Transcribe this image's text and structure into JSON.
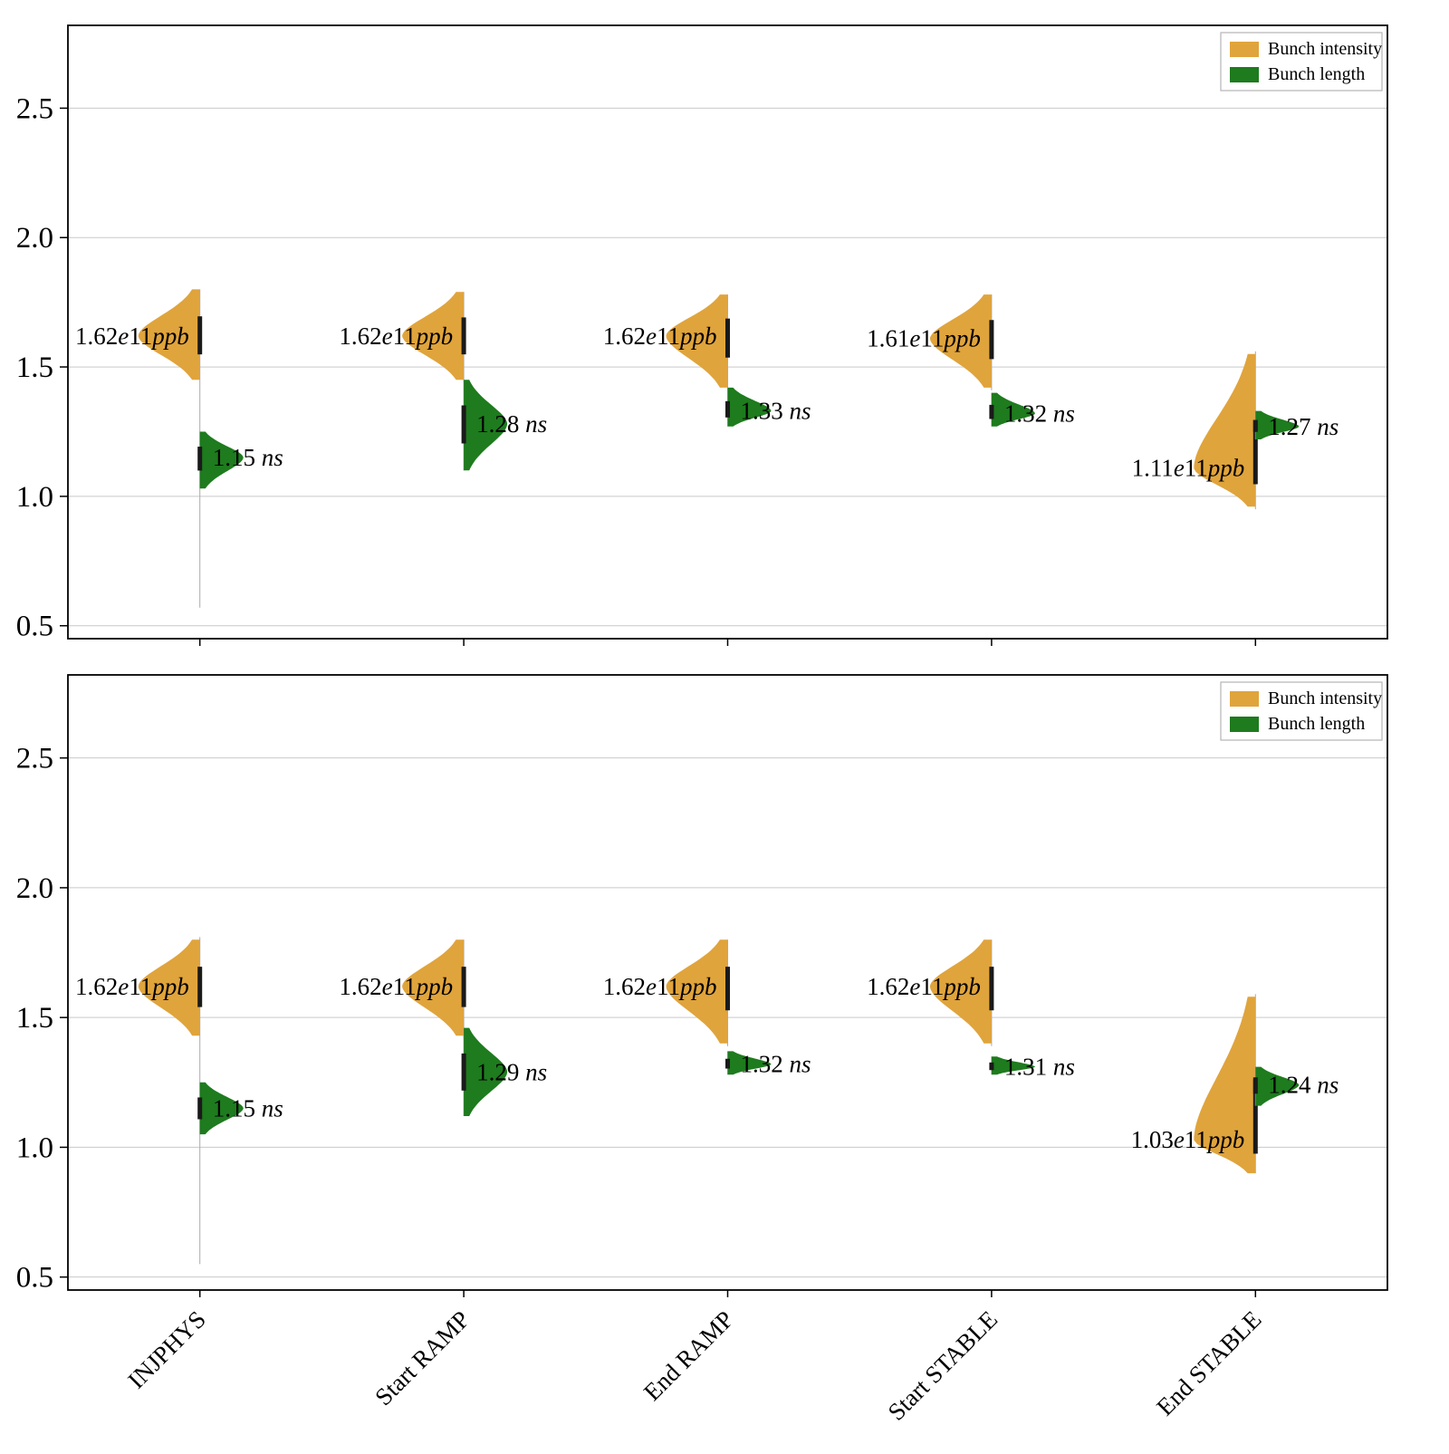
{
  "figure": {
    "background": "#ffffff",
    "border_color": "#000000",
    "grid_color": "#c9c9c9"
  },
  "colors": {
    "intensity": "#E0A43C",
    "length": "#1E7B1E",
    "bar": "#1a1a1a",
    "stem": "#aaaaaa"
  },
  "legend": {
    "items": [
      {
        "label": "Bunch intensity",
        "color": "#E0A43C"
      },
      {
        "label": "Bunch length",
        "color": "#1E7B1E"
      }
    ]
  },
  "y_axis": {
    "ticks": [
      "0.5",
      "1.0",
      "1.5",
      "2.0",
      "2.5"
    ],
    "min": 0.45,
    "max": 2.82
  },
  "categories": [
    "INJPHYS",
    "Start RAMP",
    "End RAMP",
    "Start STABLE",
    "End STABLE"
  ],
  "chart_data": [
    {
      "type": "violin",
      "panel": "top",
      "ylim": [
        0.45,
        2.82
      ],
      "categories": [
        "INJPHYS",
        "Start RAMP",
        "End RAMP",
        "Start STABLE",
        "End STABLE"
      ],
      "series": [
        {
          "name": "Bunch intensity",
          "unit": "e11 ppb",
          "side": "left",
          "color": "#E0A43C",
          "points": [
            {
              "mode": 1.62,
              "range": [
                1.45,
                1.8
              ],
              "stem": [
                0.57,
                1.8
              ],
              "label": "1.62e11ppb"
            },
            {
              "mode": 1.62,
              "range": [
                1.45,
                1.79
              ],
              "stem": [
                1.44,
                1.79
              ],
              "label": "1.62e11ppb"
            },
            {
              "mode": 1.62,
              "range": [
                1.42,
                1.78
              ],
              "stem": [
                1.41,
                1.78
              ],
              "label": "1.62e11ppb"
            },
            {
              "mode": 1.61,
              "range": [
                1.42,
                1.78
              ],
              "stem": [
                1.41,
                1.78
              ],
              "label": "1.61e11ppb"
            },
            {
              "mode": 1.11,
              "range": [
                0.96,
                1.55
              ],
              "stem": [
                0.95,
                1.56
              ],
              "label": "1.11e11ppb"
            }
          ]
        },
        {
          "name": "Bunch length",
          "unit": "ns",
          "side": "right",
          "color": "#1E7B1E",
          "points": [
            {
              "mode": 1.15,
              "range": [
                1.03,
                1.25
              ],
              "label": "1.15 ns"
            },
            {
              "mode": 1.28,
              "range": [
                1.1,
                1.45
              ],
              "label": "1.28 ns"
            },
            {
              "mode": 1.33,
              "range": [
                1.27,
                1.42
              ],
              "label": "1.33 ns"
            },
            {
              "mode": 1.32,
              "range": [
                1.27,
                1.4
              ],
              "label": "1.32 ns"
            },
            {
              "mode": 1.27,
              "range": [
                1.22,
                1.33
              ],
              "label": "1.27 ns"
            }
          ]
        }
      ]
    },
    {
      "type": "violin",
      "panel": "bottom",
      "ylim": [
        0.45,
        2.82
      ],
      "categories": [
        "INJPHYS",
        "Start RAMP",
        "End RAMP",
        "Start STABLE",
        "End STABLE"
      ],
      "series": [
        {
          "name": "Bunch intensity",
          "unit": "e11 ppb",
          "side": "left",
          "color": "#E0A43C",
          "points": [
            {
              "mode": 1.62,
              "range": [
                1.43,
                1.8
              ],
              "stem": [
                0.55,
                1.81
              ],
              "label": "1.62e11ppb"
            },
            {
              "mode": 1.62,
              "range": [
                1.43,
                1.8
              ],
              "stem": [
                1.42,
                1.8
              ],
              "label": "1.62e11ppb"
            },
            {
              "mode": 1.62,
              "range": [
                1.4,
                1.8
              ],
              "stem": [
                1.39,
                1.8
              ],
              "label": "1.62e11ppb"
            },
            {
              "mode": 1.62,
              "range": [
                1.4,
                1.8
              ],
              "stem": [
                1.39,
                1.8
              ],
              "label": "1.62e11ppb"
            },
            {
              "mode": 1.03,
              "range": [
                0.9,
                1.58
              ],
              "stem": [
                0.9,
                1.59
              ],
              "label": "1.03e11ppb"
            }
          ]
        },
        {
          "name": "Bunch length",
          "unit": "ns",
          "side": "right",
          "color": "#1E7B1E",
          "points": [
            {
              "mode": 1.15,
              "range": [
                1.05,
                1.25
              ],
              "label": "1.15 ns"
            },
            {
              "mode": 1.29,
              "range": [
                1.12,
                1.46
              ],
              "label": "1.29 ns"
            },
            {
              "mode": 1.32,
              "range": [
                1.28,
                1.37
              ],
              "label": "1.32 ns"
            },
            {
              "mode": 1.31,
              "range": [
                1.28,
                1.35
              ],
              "label": "1.31 ns"
            },
            {
              "mode": 1.24,
              "range": [
                1.16,
                1.31
              ],
              "label": "1.24 ns"
            }
          ]
        }
      ]
    }
  ]
}
